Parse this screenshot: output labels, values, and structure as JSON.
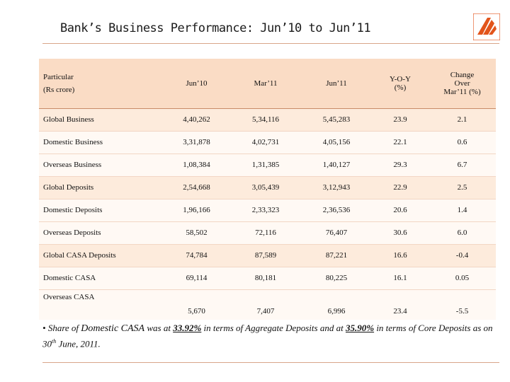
{
  "slide": {
    "title": "Bank’s Business Performance: Jun’10 to Jun’11"
  },
  "table": {
    "header": {
      "particular": "Particular",
      "unit": "(Rs crore)",
      "col1": "Jun’10",
      "col2": "Mar’11",
      "col3": "Jun’11",
      "yoy_line1": "Y-O-Y",
      "yoy_line2": "(%)",
      "chg_line1": "Change",
      "chg_line2": "Over",
      "chg_line3": "Mar’11 (%)"
    },
    "rows": [
      {
        "label": "Global Business",
        "jun10": "4,40,262",
        "mar11": "5,34,116",
        "jun11": "5,45,283",
        "yoy": "23.9",
        "chg": "2.1"
      },
      {
        "label": "Domestic Business",
        "jun10": "3,31,878",
        "mar11": "4,02,731",
        "jun11": "4,05,156",
        "yoy": "22.1",
        "chg": "0.6"
      },
      {
        "label": "Overseas Business",
        "jun10": "1,08,384",
        "mar11": "1,31,385",
        "jun11": "1,40,127",
        "yoy": "29.3",
        "chg": "6.7"
      },
      {
        "label": "Global Deposits",
        "jun10": "2,54,668",
        "mar11": "3,05,439",
        "jun11": "3,12,943",
        "yoy": "22.9",
        "chg": "2.5"
      },
      {
        "label": "Domestic Deposits",
        "jun10": "1,96,166",
        "mar11": "2,33,323",
        "jun11": "2,36,536",
        "yoy": "20.6",
        "chg": "1.4"
      },
      {
        "label": "Overseas Deposits",
        "jun10": "58,502",
        "mar11": "72,116",
        "jun11": "76,407",
        "yoy": "30.6",
        "chg": "6.0"
      },
      {
        "label": "Global CASA Deposits",
        "jun10": "74,784",
        "mar11": "87,589",
        "jun11": "87,221",
        "yoy": "16.6",
        "chg": "-0.4"
      },
      {
        "label": "Domestic CASA",
        "jun10": "69,114",
        "mar11": "80,181",
        "jun11": "80,225",
        "yoy": "16.1",
        "chg": "0.05"
      },
      {
        "label": "Overseas CASA",
        "jun10": "5,670",
        "mar11": "7,407",
        "jun11": "6,996",
        "yoy": "23.4",
        "chg": "-5.5"
      }
    ]
  },
  "note": {
    "bullet": "•",
    "t1": "Share of",
    "t2": "Domestic CASA",
    "t3": "was at",
    "v1": "33.92%",
    "t4": "in terms of Aggregate Deposits and at",
    "v2": "35.90%",
    "t5": "in terms of Core Deposits as on 30",
    "sup": "th",
    "t6": "June, 2011."
  },
  "colors": {
    "header_bg": "#fadcc5",
    "row_shade": "#fdebdc",
    "row_plain": "#fff9f4",
    "rule": "#d9a58a",
    "logo": "#e2541b"
  }
}
